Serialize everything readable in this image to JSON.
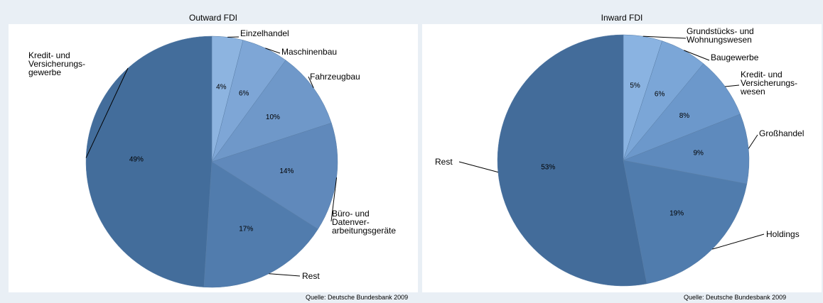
{
  "chart_data": [
    {
      "type": "pie",
      "title": "Outward FDI",
      "categories": [
        "Einzelhandel",
        "Maschinenbau",
        "Fahrzeugbau",
        "Büro- und\nDatenver-\narbeitungsgeräte",
        "Rest",
        "Kredit- und\nVersicherungs-\ngewerbe"
      ],
      "values": [
        4,
        6,
        10,
        14,
        17,
        49
      ],
      "value_labels": [
        "4%",
        "6%",
        "10%",
        "14%",
        "17%",
        "49%"
      ],
      "colors": [
        "#8db4e0",
        "#7ea6d6",
        "#6f98c9",
        "#6089bb",
        "#517cad",
        "#436d9b"
      ],
      "source": "Quelle: Deutsche Bundesbank 2009"
    },
    {
      "type": "pie",
      "title": "Inward FDI",
      "categories": [
        "Grundstücks- und\nWohnungswesen",
        "Baugewerbe",
        "Kredit- und\nVersicherungs-\nwesen",
        "Großhandel",
        "Holdings",
        "Rest"
      ],
      "values": [
        5,
        6,
        8,
        9,
        19,
        53
      ],
      "value_labels": [
        "5%",
        "6%",
        "8%",
        "9%",
        "19%",
        "53%"
      ],
      "colors": [
        "#8ab3e1",
        "#7ba6d7",
        "#6c98cb",
        "#5e8abd",
        "#507cad",
        "#436c9a"
      ],
      "source": "Quelle: Deutsche Bundesbank 2009"
    }
  ]
}
